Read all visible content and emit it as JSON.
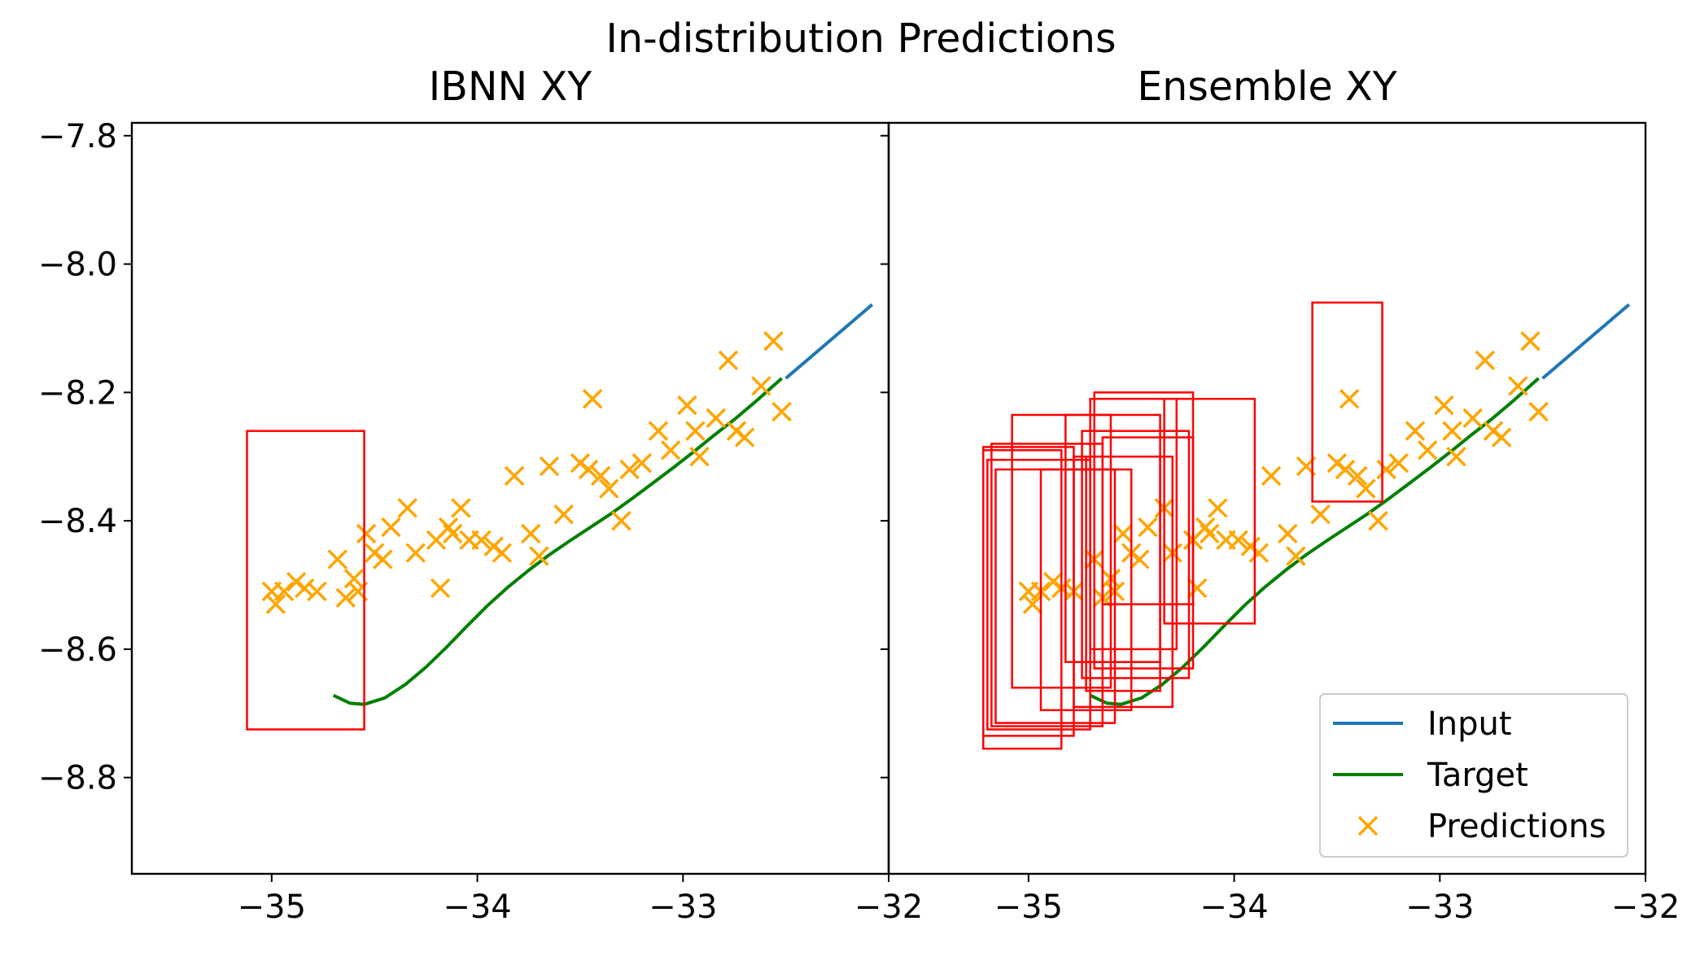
{
  "chart_data": {
    "type": "line+scatter+rect",
    "suptitle": "In-distribution Predictions",
    "xlim": [
      -35.68,
      -32.0
    ],
    "ylim": [
      -8.95,
      -7.78
    ],
    "xticks": [
      -35,
      -34,
      -33,
      -32
    ],
    "yticks": [
      -7.8,
      -8.0,
      -8.2,
      -8.4,
      -8.6,
      -8.8
    ],
    "xtick_labels": [
      "−35",
      "−34",
      "−33",
      "−32"
    ],
    "ytick_labels": [
      "−7.8",
      "−8.0",
      "−8.2",
      "−8.4",
      "−8.6",
      "−8.8"
    ],
    "colors": {
      "input": "#1f77b4",
      "target": "#008000",
      "predictions": "#ffa500",
      "boxes": "#ff0000"
    },
    "legend": {
      "placement": "lower-right",
      "entries": [
        {
          "label": "Input",
          "kind": "line",
          "color": "#1f77b4"
        },
        {
          "label": "Target",
          "kind": "line",
          "color": "#008000"
        },
        {
          "label": "Predictions",
          "kind": "marker",
          "color": "#ffa500"
        }
      ]
    },
    "input": {
      "x": [
        -32.5,
        -32.08
      ],
      "y": [
        -8.178,
        -8.063
      ]
    },
    "target": {
      "x": [
        -34.7,
        -34.62,
        -34.55,
        -34.45,
        -34.35,
        -34.25,
        -34.15,
        -34.05,
        -33.95,
        -33.85,
        -33.75,
        -33.65,
        -33.55,
        -33.45,
        -33.35,
        -33.25,
        -33.15,
        -33.05,
        -32.95,
        -32.85,
        -32.75,
        -32.65,
        -32.52
      ],
      "y": [
        -8.672,
        -8.684,
        -8.686,
        -8.676,
        -8.655,
        -8.628,
        -8.597,
        -8.564,
        -8.532,
        -8.503,
        -8.477,
        -8.453,
        -8.431,
        -8.41,
        -8.389,
        -8.366,
        -8.342,
        -8.318,
        -8.293,
        -8.267,
        -8.242,
        -8.215,
        -8.178
      ]
    },
    "predictions": {
      "x": [
        -35.0,
        -34.98,
        -34.94,
        -34.88,
        -34.84,
        -34.78,
        -34.68,
        -34.64,
        -34.6,
        -34.58,
        -34.54,
        -34.5,
        -34.46,
        -34.42,
        -34.34,
        -34.3,
        -34.2,
        -34.18,
        -34.14,
        -34.12,
        -34.08,
        -34.04,
        -33.98,
        -33.92,
        -33.88,
        -33.82,
        -33.74,
        -33.7,
        -33.65,
        -33.58,
        -33.5,
        -33.46,
        -33.44,
        -33.4,
        -33.36,
        -33.3,
        -33.26,
        -33.2,
        -33.12,
        -33.06,
        -32.98,
        -32.94,
        -32.92,
        -32.84,
        -32.78,
        -32.74,
        -32.7,
        -32.62,
        -32.56,
        -32.52
      ],
      "y": [
        -8.51,
        -8.53,
        -8.51,
        -8.495,
        -8.505,
        -8.51,
        -8.46,
        -8.52,
        -8.49,
        -8.51,
        -8.42,
        -8.45,
        -8.46,
        -8.41,
        -8.38,
        -8.45,
        -8.43,
        -8.505,
        -8.41,
        -8.42,
        -8.38,
        -8.43,
        -8.43,
        -8.44,
        -8.45,
        -8.33,
        -8.42,
        -8.455,
        -8.315,
        -8.39,
        -8.31,
        -8.32,
        -8.21,
        -8.33,
        -8.35,
        -8.4,
        -8.32,
        -8.31,
        -8.26,
        -8.29,
        -8.22,
        -8.26,
        -8.3,
        -8.24,
        -8.15,
        -8.26,
        -8.27,
        -8.19,
        -8.12,
        -8.23
      ]
    },
    "panels": [
      {
        "title": "IBNN XY",
        "boxes": [
          {
            "x0": -35.12,
            "x1": -34.55,
            "y0": -8.725,
            "y1": -8.26
          }
        ]
      },
      {
        "title": "Ensemble XY",
        "boxes": [
          {
            "x0": -35.22,
            "x1": -34.84,
            "y0": -8.755,
            "y1": -8.29
          },
          {
            "x0": -35.22,
            "x1": -34.78,
            "y0": -8.735,
            "y1": -8.285
          },
          {
            "x0": -35.2,
            "x1": -34.7,
            "y0": -8.725,
            "y1": -8.305
          },
          {
            "x0": -35.18,
            "x1": -34.64,
            "y0": -8.72,
            "y1": -8.28
          },
          {
            "x0": -35.16,
            "x1": -34.58,
            "y0": -8.715,
            "y1": -8.32
          },
          {
            "x0": -35.08,
            "x1": -34.6,
            "y0": -8.66,
            "y1": -8.235
          },
          {
            "x0": -34.94,
            "x1": -34.5,
            "y0": -8.695,
            "y1": -8.32
          },
          {
            "x0": -34.82,
            "x1": -34.36,
            "y0": -8.62,
            "y1": -8.235
          },
          {
            "x0": -34.78,
            "x1": -34.3,
            "y0": -8.69,
            "y1": -8.3
          },
          {
            "x0": -34.74,
            "x1": -34.22,
            "y0": -8.645,
            "y1": -8.26
          },
          {
            "x0": -34.72,
            "x1": -34.36,
            "y0": -8.665,
            "y1": -8.3
          },
          {
            "x0": -34.7,
            "x1": -34.28,
            "y0": -8.6,
            "y1": -8.21
          },
          {
            "x0": -34.68,
            "x1": -34.2,
            "y0": -8.63,
            "y1": -8.2
          },
          {
            "x0": -34.64,
            "x1": -34.2,
            "y0": -8.53,
            "y1": -8.27
          },
          {
            "x0": -34.34,
            "x1": -33.9,
            "y0": -8.56,
            "y1": -8.21
          },
          {
            "x0": -33.62,
            "x1": -33.28,
            "y0": -8.37,
            "y1": -8.06
          }
        ]
      }
    ]
  }
}
